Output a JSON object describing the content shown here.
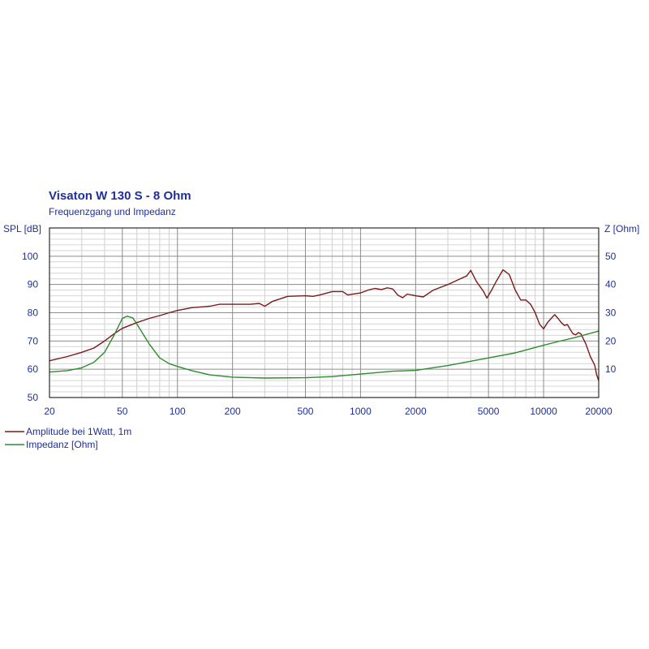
{
  "chart_data": {
    "type": "line",
    "title": "Visaton W 130 S - 8 Ohm",
    "subtitle": "Frequenzgang und Impedanz",
    "y_left_label": "SPL [dB]",
    "y_right_label": "Z [Ohm]",
    "x_scale": "log",
    "xlim": [
      20,
      20000
    ],
    "y_left_lim": [
      50,
      110
    ],
    "y_right_lim": [
      0,
      60
    ],
    "x_ticks": [
      20,
      50,
      100,
      200,
      500,
      1000,
      2000,
      5000,
      10000,
      20000
    ],
    "x_tick_labels": [
      "20",
      "50",
      "100",
      "200",
      "500",
      "1000",
      "2000",
      "5000",
      "10000",
      "20000"
    ],
    "y_left_ticks": [
      50,
      60,
      70,
      80,
      90,
      100
    ],
    "y_right_ticks": [
      10,
      20,
      30,
      40,
      50
    ],
    "grid": true,
    "series": [
      {
        "name": "Amplitude bei 1Watt, 1m",
        "axis": "left",
        "color": "#7a1a1a",
        "points": [
          [
            20,
            63
          ],
          [
            25,
            64.5
          ],
          [
            30,
            66
          ],
          [
            35,
            67.5
          ],
          [
            40,
            70
          ],
          [
            45,
            72.5
          ],
          [
            50,
            74.5
          ],
          [
            60,
            76.5
          ],
          [
            70,
            78
          ],
          [
            80,
            79
          ],
          [
            90,
            80
          ],
          [
            100,
            80.8
          ],
          [
            120,
            81.8
          ],
          [
            150,
            82.3
          ],
          [
            170,
            83
          ],
          [
            200,
            83
          ],
          [
            250,
            83
          ],
          [
            280,
            83.3
          ],
          [
            300,
            82.3
          ],
          [
            330,
            84
          ],
          [
            400,
            85.8
          ],
          [
            500,
            86
          ],
          [
            550,
            85.8
          ],
          [
            600,
            86.3
          ],
          [
            700,
            87.5
          ],
          [
            800,
            87.5
          ],
          [
            850,
            86.3
          ],
          [
            1000,
            87
          ],
          [
            1100,
            88
          ],
          [
            1200,
            88.6
          ],
          [
            1300,
            88.2
          ],
          [
            1400,
            88.8
          ],
          [
            1500,
            88.4
          ],
          [
            1600,
            86.2
          ],
          [
            1700,
            85.3
          ],
          [
            1800,
            86.6
          ],
          [
            2000,
            86
          ],
          [
            2200,
            85.6
          ],
          [
            2500,
            88
          ],
          [
            3000,
            90
          ],
          [
            3500,
            92
          ],
          [
            3800,
            93
          ],
          [
            4000,
            95
          ],
          [
            4300,
            91
          ],
          [
            4700,
            87.5
          ],
          [
            4900,
            85.2
          ],
          [
            5200,
            88
          ],
          [
            5500,
            91
          ],
          [
            6000,
            95.2
          ],
          [
            6500,
            93.5
          ],
          [
            7000,
            88
          ],
          [
            7500,
            84.5
          ],
          [
            8000,
            84.5
          ],
          [
            8500,
            83
          ],
          [
            9000,
            80
          ],
          [
            9500,
            76
          ],
          [
            10000,
            74.3
          ],
          [
            10500,
            76.5
          ],
          [
            11000,
            78
          ],
          [
            11500,
            79.3
          ],
          [
            12000,
            78
          ],
          [
            12500,
            76.5
          ],
          [
            13000,
            75.5
          ],
          [
            13500,
            75.8
          ],
          [
            14000,
            74
          ],
          [
            14500,
            72.5
          ],
          [
            15000,
            72.2
          ],
          [
            15500,
            73
          ],
          [
            16000,
            72.5
          ],
          [
            17000,
            69
          ],
          [
            18000,
            64.5
          ],
          [
            19000,
            61.5
          ],
          [
            19500,
            58
          ],
          [
            20000,
            56
          ]
        ]
      },
      {
        "name": "Impedanz [Ohm]",
        "axis": "right",
        "color": "#2e8b2e",
        "points": [
          [
            20,
            9
          ],
          [
            25,
            9.5
          ],
          [
            30,
            10.5
          ],
          [
            35,
            12.5
          ],
          [
            40,
            16
          ],
          [
            45,
            22
          ],
          [
            50,
            28
          ],
          [
            53,
            28.8
          ],
          [
            57,
            28.2
          ],
          [
            60,
            26
          ],
          [
            70,
            19
          ],
          [
            80,
            14
          ],
          [
            90,
            12
          ],
          [
            100,
            11
          ],
          [
            120,
            9.5
          ],
          [
            150,
            8
          ],
          [
            200,
            7.2
          ],
          [
            300,
            6.9
          ],
          [
            500,
            7
          ],
          [
            700,
            7.4
          ],
          [
            1000,
            8.3
          ],
          [
            1500,
            9.3
          ],
          [
            2000,
            9.6
          ],
          [
            3000,
            11.3
          ],
          [
            5000,
            14
          ],
          [
            7000,
            15.8
          ],
          [
            10000,
            18.5
          ],
          [
            12000,
            19.8
          ],
          [
            15000,
            21.3
          ],
          [
            20000,
            23.5
          ]
        ]
      }
    ],
    "legend": [
      {
        "label": "Amplitude bei 1Watt, 1m",
        "color": "#7a1a1a"
      },
      {
        "label": "Impedanz [Ohm]",
        "color": "#2e8b2e"
      }
    ],
    "legend_placement": "bottom-left"
  }
}
